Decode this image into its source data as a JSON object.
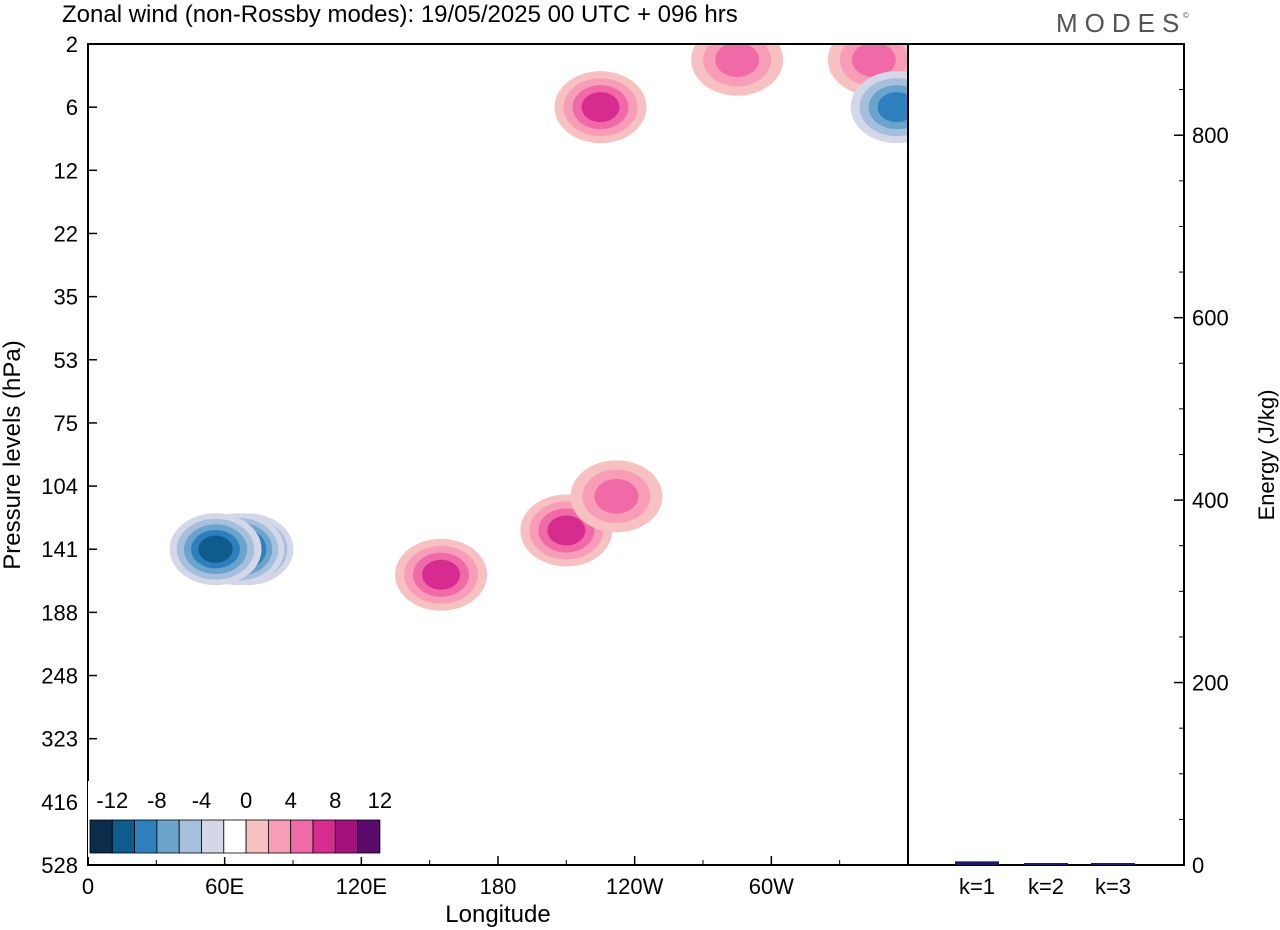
{
  "header": {
    "title": "Zonal wind (non-Rossby modes):  19/05/2025  00 UTC  + 096 hrs",
    "brand": "MODES",
    "brand_mark": "©"
  },
  "chart_data": [
    {
      "type": "heatmap",
      "title": "Zonal wind (non-Rossby modes):  19/05/2025  00 UTC  + 096 hrs",
      "xlabel": "Longitude",
      "ylabel": "Pressure levels (hPa)",
      "x_ticks": [
        "0",
        "60E",
        "120E",
        "180",
        "120W",
        "60W"
      ],
      "x_tick_degrees": [
        0,
        60,
        120,
        180,
        240,
        300
      ],
      "xlim": [
        0,
        360
      ],
      "y_ticks": [
        "2",
        "6",
        "12",
        "22",
        "35",
        "53",
        "75",
        "104",
        "141",
        "188",
        "248",
        "323",
        "416",
        "528"
      ],
      "colorbar": {
        "tick_labels": [
          "-12",
          "-8",
          "-4",
          "0",
          "4",
          "8",
          "12"
        ],
        "levels": [
          -14,
          -12,
          -10,
          -8,
          -6,
          -4,
          -2,
          2,
          4,
          6,
          8,
          10,
          12,
          14
        ],
        "colors": [
          "#0b2c4a",
          "#0e5b8e",
          "#2e7fbd",
          "#6aa3cc",
          "#a6bfdc",
          "#d3d7e8",
          "#ffffff",
          "#f8c1c1",
          "#f79db8",
          "#ef6aa6",
          "#d62c90",
          "#a3117c",
          "#5a0c6e"
        ]
      },
      "features": [
        {
          "lon": 70,
          "level": 141,
          "value": -14,
          "sign": "neg",
          "cells": [
            [
              70,
              141,
              7
            ],
            [
              68,
              141,
              13
            ]
          ]
        },
        {
          "lon": 66,
          "level": 141,
          "value": -12,
          "sign": "neg"
        },
        {
          "lon": 56,
          "level": 141,
          "value": -10,
          "sign": "neg"
        },
        {
          "lon": 155,
          "level": 160,
          "value": 8,
          "sign": "pos"
        },
        {
          "lon": 210,
          "level": 130,
          "value": 8,
          "sign": "pos"
        },
        {
          "lon": 232,
          "level": 110,
          "value": 6,
          "sign": "pos"
        },
        {
          "lon": 225,
          "level": 6,
          "value": 8,
          "sign": "pos"
        },
        {
          "lon": 285,
          "level": 3,
          "value": 6,
          "sign": "pos"
        },
        {
          "lon": 345,
          "level": 3,
          "value": 6,
          "sign": "pos"
        },
        {
          "lon": 355,
          "level": 6,
          "value": -8,
          "sign": "neg"
        }
      ]
    },
    {
      "type": "bar",
      "categories": [
        "k=1",
        "k=2",
        "k=3"
      ],
      "values": [
        4,
        2,
        1
      ],
      "ylabel": "Energy (J/kg)",
      "ylim": [
        0,
        900
      ],
      "y_ticks": [
        "0",
        "200",
        "400",
        "600",
        "800"
      ],
      "bar_color": "#1a1a6e"
    }
  ]
}
